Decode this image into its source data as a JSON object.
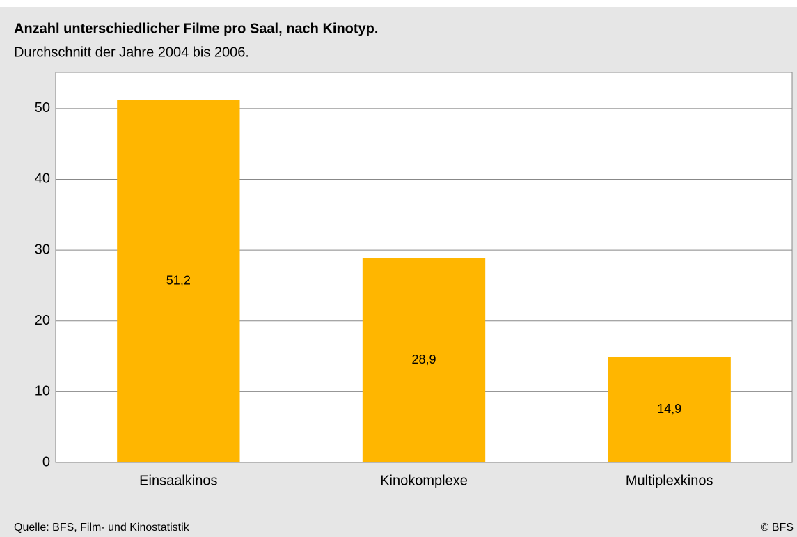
{
  "chart_data": {
    "type": "bar",
    "title": "Anzahl unterschiedlicher Filme pro Saal, nach Kinotyp.",
    "subtitle": "Durchschnitt der Jahre 2004 bis 2006.",
    "source": "Quelle: BFS, Film- und Kinostatistik",
    "copyright": "© BFS",
    "categories": [
      "Einsaalkinos",
      "Kinokomplexe",
      "Multiplexkinos"
    ],
    "values": [
      51.2,
      28.9,
      14.9
    ],
    "value_labels": [
      "51,2",
      "28,9",
      "14,9"
    ],
    "color": "#ffb600",
    "ylim": [
      0,
      55
    ],
    "yticks": [
      0,
      10,
      20,
      30,
      40,
      50
    ],
    "grid": true
  }
}
